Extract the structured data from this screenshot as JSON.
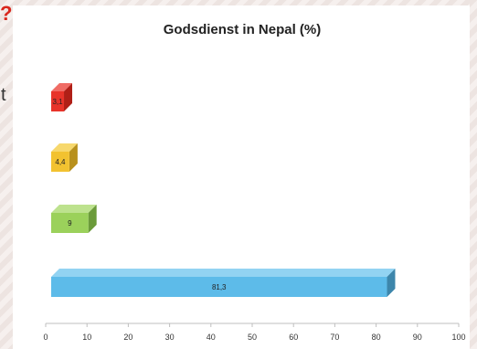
{
  "slide": {
    "corner_mark": "?",
    "edge_glyph": "t"
  },
  "chart_data": {
    "type": "bar",
    "orientation": "horizontal",
    "title": "Godsdienst in Nepal (%)",
    "xlabel": "",
    "ylabel": "",
    "xlim": [
      0,
      100
    ],
    "x_ticks": [
      0,
      10,
      20,
      30,
      40,
      50,
      60,
      70,
      80,
      90,
      100
    ],
    "grid": false,
    "legend": "none",
    "style": "3d",
    "categories": [
      "",
      "",
      "",
      ""
    ],
    "values": [
      3.1,
      4.4,
      9,
      81.3
    ],
    "data_labels": [
      "3,1",
      "4,4",
      "9",
      "81,3"
    ],
    "colors": [
      "#e8332a",
      "#f2c230",
      "#9bd15b",
      "#5dbbe9"
    ],
    "side_colors": [
      "#b01f17",
      "#b8901c",
      "#6b9b3a",
      "#3d86ab"
    ],
    "top_colors": [
      "#f06c65",
      "#f7d86d",
      "#bde28e",
      "#92d3f2"
    ]
  }
}
